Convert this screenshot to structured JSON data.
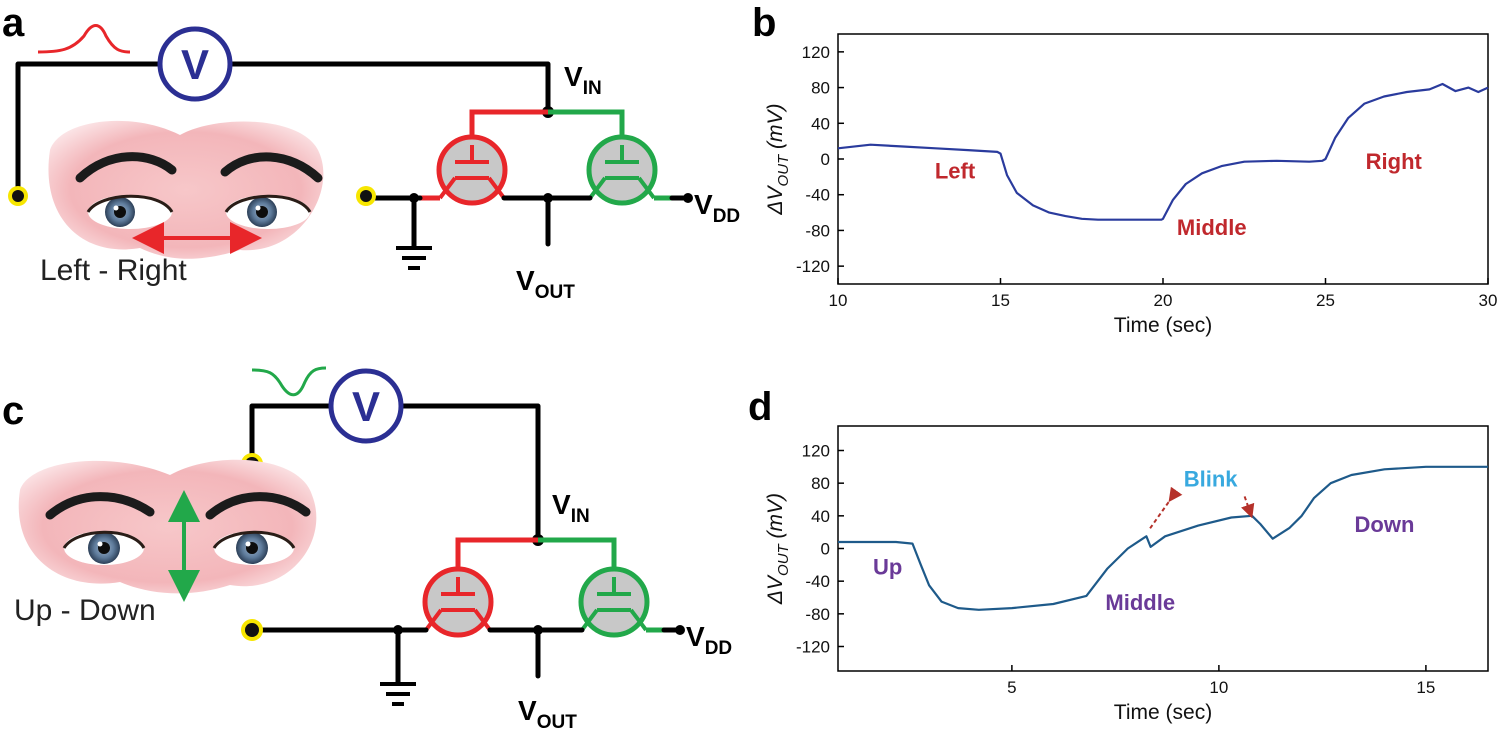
{
  "colors": {
    "wire": "#000000",
    "pmos": "#e8262a",
    "nmos": "#22a84a",
    "meter": "#2b2f93",
    "electrode": "#f7e600",
    "plot_b": "#2a3b9d",
    "plot_d": "#1e5a8a",
    "ann_b": "#c0282d",
    "ann_d": "#6a3a98",
    "blink": "#38a9df"
  },
  "panels": {
    "a": {
      "letter": "a",
      "meter_label": "V",
      "eye_motion_label": "Left - Right",
      "vin": {
        "main": "V",
        "sub": "IN"
      },
      "vout": {
        "main": "V",
        "sub": "OUT"
      },
      "vdd": {
        "main": "V",
        "sub": "DD"
      },
      "signal_icon": "red-pulse-icon"
    },
    "c": {
      "letter": "c",
      "meter_label": "V",
      "eye_motion_label": "Up - Down",
      "vin": {
        "main": "V",
        "sub": "IN"
      },
      "vout": {
        "main": "V",
        "sub": "OUT"
      },
      "vdd": {
        "main": "V",
        "sub": "DD"
      },
      "signal_icon": "green-dip-icon"
    },
    "b": {
      "letter": "b"
    },
    "d": {
      "letter": "d"
    }
  },
  "chart_data": [
    {
      "panel": "b",
      "type": "line",
      "xlabel": "Time (sec)",
      "ylabel": "ΔV",
      "ylabel_sub": "OUT",
      "ylabel_unit": " (mV)",
      "xlim": [
        10,
        30
      ],
      "ylim": [
        -140,
        140
      ],
      "xticks": [
        10,
        15,
        20,
        25,
        30
      ],
      "yticks": [
        -120,
        -80,
        -40,
        0,
        40,
        80,
        120
      ],
      "grid": false,
      "series": [
        {
          "x": [
            10,
            11,
            12,
            13,
            14,
            14.9,
            15,
            15.2,
            15.5,
            16,
            16.5,
            17,
            17.5,
            18,
            18.5,
            19,
            19.5,
            19.95,
            20,
            20.3,
            20.7,
            21.2,
            21.8,
            22.5,
            23.5,
            24.5,
            24.9,
            25,
            25.3,
            25.7,
            26.2,
            26.8,
            27.5,
            28.2,
            28.6,
            29,
            29.4,
            29.7,
            30
          ],
          "y": [
            12,
            16,
            14,
            12,
            10,
            8,
            6,
            -18,
            -38,
            -52,
            -60,
            -64,
            -67,
            -68,
            -68,
            -68,
            -68,
            -68,
            -67,
            -46,
            -28,
            -16,
            -8,
            -3,
            -2,
            -3,
            -2,
            0,
            24,
            46,
            62,
            70,
            75,
            78,
            84,
            76,
            80,
            75,
            80
          ]
        }
      ],
      "annotations": [
        {
          "text": "Left",
          "x": 13.6,
          "y": -22
        },
        {
          "text": "Middle",
          "x": 21.5,
          "y": -85
        },
        {
          "text": "Right",
          "x": 27.1,
          "y": -11
        }
      ]
    },
    {
      "panel": "d",
      "type": "line",
      "xlabel": "Time (sec)",
      "ylabel": "ΔV",
      "ylabel_sub": "OUT",
      "ylabel_unit": " (mV)",
      "xlim": [
        0.8,
        16.5
      ],
      "ylim": [
        -150,
        150
      ],
      "xticks": [
        5,
        10,
        15
      ],
      "yticks": [
        -120,
        -80,
        -40,
        0,
        40,
        80,
        120
      ],
      "grid": false,
      "series": [
        {
          "x": [
            0.8,
            1.5,
            2.2,
            2.6,
            2.8,
            3.0,
            3.3,
            3.7,
            4.2,
            5,
            6,
            6.8,
            7.3,
            7.8,
            8.1,
            8.25,
            8.35,
            8.7,
            9.5,
            10.3,
            10.8,
            11.0,
            11.3,
            11.7,
            12.0,
            12.3,
            12.7,
            13.2,
            14,
            15,
            16,
            16.5
          ],
          "y": [
            8,
            8,
            8,
            6,
            -20,
            -45,
            -65,
            -73,
            -75,
            -73,
            -68,
            -58,
            -25,
            0,
            10,
            15,
            2,
            15,
            28,
            38,
            40,
            30,
            12,
            25,
            40,
            62,
            80,
            90,
            97,
            100,
            100,
            100
          ]
        }
      ],
      "annotations": [
        {
          "text": "Up",
          "x": 2.0,
          "y": -32
        },
        {
          "text": "Middle",
          "x": 8.1,
          "y": -75
        },
        {
          "text": "Blink",
          "x": 9.8,
          "y": 76
        },
        {
          "text": "Down",
          "x": 14.0,
          "y": 20
        }
      ]
    }
  ]
}
